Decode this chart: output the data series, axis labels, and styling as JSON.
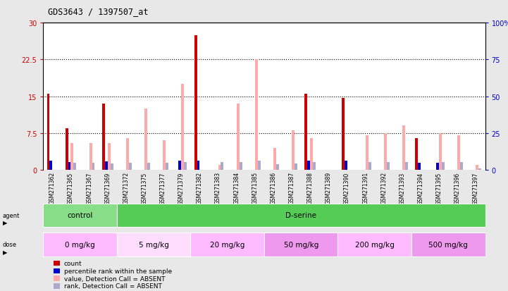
{
  "title": "GDS3643 / 1397507_at",
  "samples": [
    "GSM271362",
    "GSM271365",
    "GSM271367",
    "GSM271369",
    "GSM271372",
    "GSM271375",
    "GSM271377",
    "GSM271379",
    "GSM271382",
    "GSM271383",
    "GSM271384",
    "GSM271385",
    "GSM271386",
    "GSM271387",
    "GSM271388",
    "GSM271389",
    "GSM271390",
    "GSM271391",
    "GSM271392",
    "GSM271393",
    "GSM271394",
    "GSM271395",
    "GSM271396",
    "GSM271397"
  ],
  "count": [
    15.5,
    8.5,
    0,
    13.5,
    0,
    0,
    0,
    0,
    27.5,
    0,
    0,
    0,
    0,
    0,
    15.5,
    0,
    14.7,
    0,
    0,
    0,
    6.5,
    0,
    0,
    0
  ],
  "percentile": [
    6.5,
    5.5,
    0,
    6.0,
    0,
    0,
    0,
    6.5,
    6.5,
    0,
    0,
    0,
    0,
    0,
    6.5,
    0,
    6.5,
    0,
    0,
    0,
    5.0,
    5.0,
    0,
    0
  ],
  "value_absent": [
    0,
    5.5,
    5.5,
    5.5,
    6.5,
    12.5,
    6.0,
    17.5,
    0,
    1.0,
    13.5,
    22.5,
    4.5,
    8.0,
    6.5,
    0,
    0,
    7.0,
    7.5,
    9.0,
    0,
    7.5,
    7.0,
    1.0
  ],
  "rank_absent": [
    0,
    5.0,
    5.0,
    4.5,
    5.0,
    5.0,
    5.0,
    5.5,
    0,
    5.5,
    5.5,
    6.5,
    4.0,
    4.5,
    5.5,
    0,
    0,
    5.5,
    5.5,
    5.5,
    0,
    5.5,
    5.5,
    1.0
  ],
  "agent_groups": [
    {
      "label": "control",
      "start": 0,
      "end": 4,
      "color": "#88dd88"
    },
    {
      "label": "D-serine",
      "start": 4,
      "end": 24,
      "color": "#55cc55"
    }
  ],
  "dose_groups": [
    {
      "label": "0 mg/kg",
      "start": 0,
      "end": 4,
      "color": "#ffbbff"
    },
    {
      "label": "5 mg/kg",
      "start": 4,
      "end": 8,
      "color": "#ffddff"
    },
    {
      "label": "20 mg/kg",
      "start": 8,
      "end": 12,
      "color": "#ffbbff"
    },
    {
      "label": "50 mg/kg",
      "start": 12,
      "end": 16,
      "color": "#ee99ee"
    },
    {
      "label": "200 mg/kg",
      "start": 16,
      "end": 20,
      "color": "#ffbbff"
    },
    {
      "label": "500 mg/kg",
      "start": 20,
      "end": 24,
      "color": "#ee99ee"
    }
  ],
  "ylim_left": [
    0,
    30
  ],
  "ylim_right": [
    0,
    100
  ],
  "yticks_left": [
    0,
    7.5,
    15,
    22.5,
    30
  ],
  "yticks_right": [
    0,
    25,
    50,
    75,
    100
  ],
  "color_count": "#cc0000",
  "color_percentile": "#0000cc",
  "color_value_absent": "#ffaaaa",
  "color_rank_absent": "#aaaacc",
  "bar_width": 0.15
}
